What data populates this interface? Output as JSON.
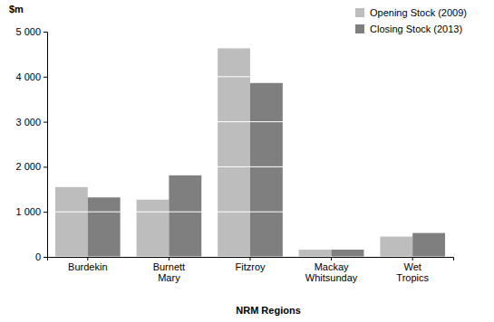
{
  "chart_data": {
    "type": "bar",
    "y_label": "$m",
    "x_label": "NRM Regions",
    "categories": [
      "Burdekin",
      "Burnett Mary",
      "Fitzroy",
      "Mackay Whitsunday",
      "Wet Tropics"
    ],
    "series": [
      {
        "name": "Opening Stock (2009)",
        "color": "#bdbdbd",
        "values": [
          1550,
          1270,
          4630,
          160,
          450
        ]
      },
      {
        "name": "Closing Stock (2013)",
        "color": "#7f7f7f",
        "values": [
          1320,
          1810,
          3860,
          160,
          530
        ]
      }
    ],
    "ylim": [
      0,
      5000
    ],
    "yticks": [
      0,
      {
        "value": 1000,
        "label": "1 000"
      },
      {
        "value": 2000,
        "label": "2 000"
      },
      {
        "value": 3000,
        "label": "3 000"
      },
      {
        "value": 4000,
        "label": "4 000"
      },
      {
        "value": 5000,
        "label": "5 000"
      }
    ],
    "grid": true,
    "legend": "top-right"
  }
}
